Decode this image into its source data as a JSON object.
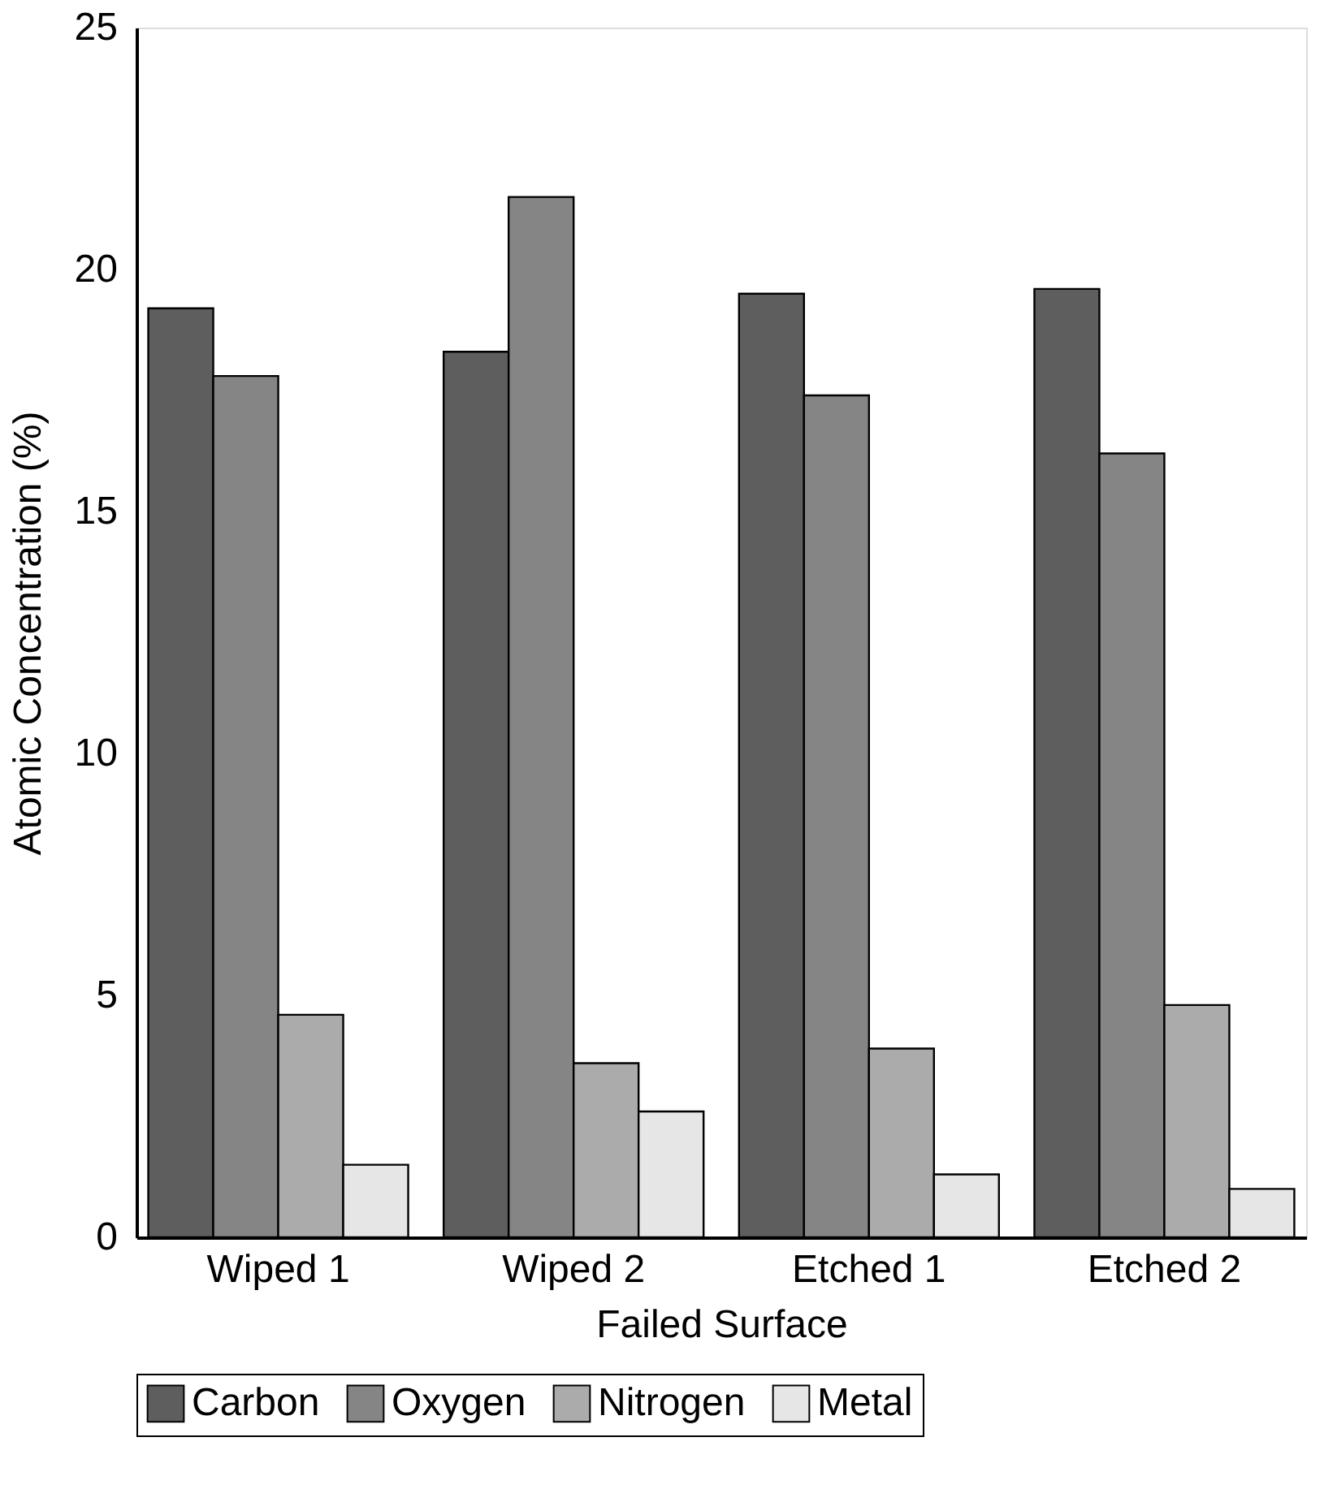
{
  "chart_data": {
    "type": "bar",
    "xlabel": "Failed Surface",
    "ylabel": "Atomic Concentration (%)",
    "categories": [
      "Wiped 1",
      "Wiped 2",
      "Etched 1",
      "Etched 2"
    ],
    "series": [
      {
        "name": "Carbon",
        "color": "#5e5e5e",
        "values": [
          19.2,
          18.3,
          19.5,
          19.6
        ]
      },
      {
        "name": "Oxygen",
        "color": "#858585",
        "values": [
          17.8,
          21.5,
          17.4,
          16.2
        ]
      },
      {
        "name": "Nitrogen",
        "color": "#ababab",
        "values": [
          4.6,
          3.6,
          3.9,
          4.8
        ]
      },
      {
        "name": "Metal",
        "color": "#e6e6e6",
        "values": [
          1.5,
          2.6,
          1.3,
          1.0
        ]
      }
    ],
    "ylim": [
      0,
      25
    ],
    "yticks": [
      0,
      5,
      10,
      15,
      20,
      25
    ],
    "grid": false,
    "legend": "bottom"
  }
}
